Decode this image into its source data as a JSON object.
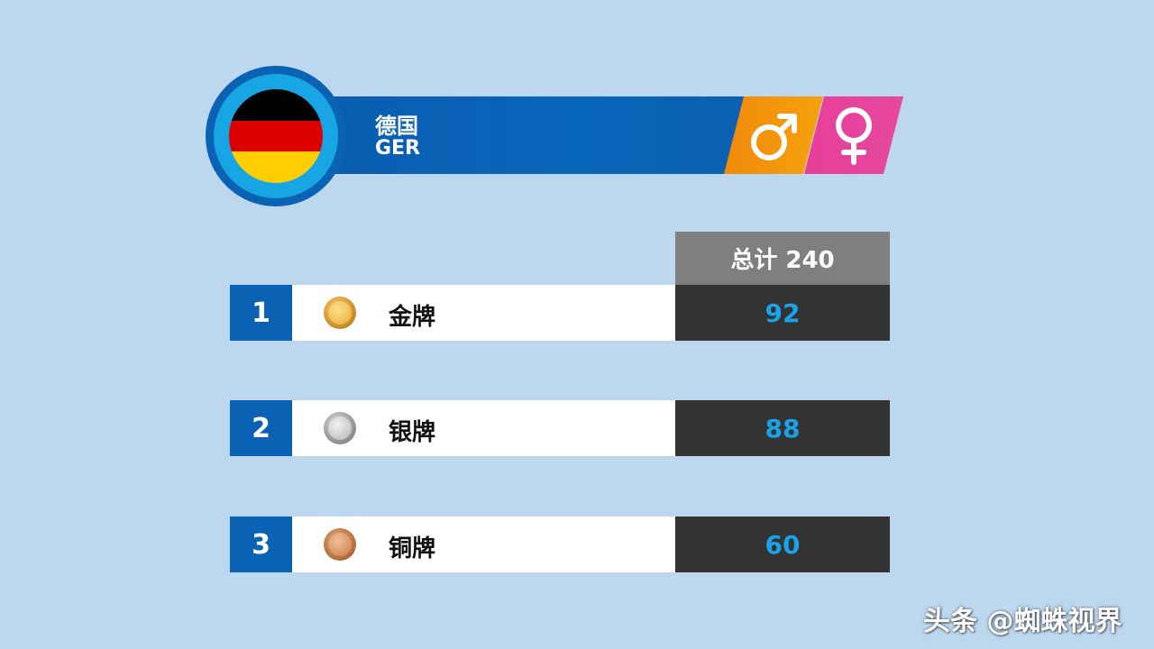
{
  "header": {
    "country_name": "德国",
    "country_code": "GER",
    "flag_colors": [
      "#000000",
      "#dd0000",
      "#ffce00"
    ],
    "male_icon": "male-symbol-icon",
    "female_icon": "female-symbol-icon"
  },
  "table": {
    "total_label": "总计 240",
    "rows": [
      {
        "rank": "1",
        "medal": "金牌",
        "count": "92",
        "medal_icon": "gold-medal-icon"
      },
      {
        "rank": "2",
        "medal": "银牌",
        "count": "88",
        "medal_icon": "silver-medal-icon"
      },
      {
        "rank": "3",
        "medal": "铜牌",
        "count": "60",
        "medal_icon": "bronze-medal-icon"
      }
    ]
  },
  "watermark": "头条 @蜘蛛视界",
  "colors": {
    "background": "#bdd7ee",
    "blue": "#0a62b5",
    "count_text": "#1aa3e8",
    "male": "#f08a0a",
    "female": "#e73f9a"
  }
}
